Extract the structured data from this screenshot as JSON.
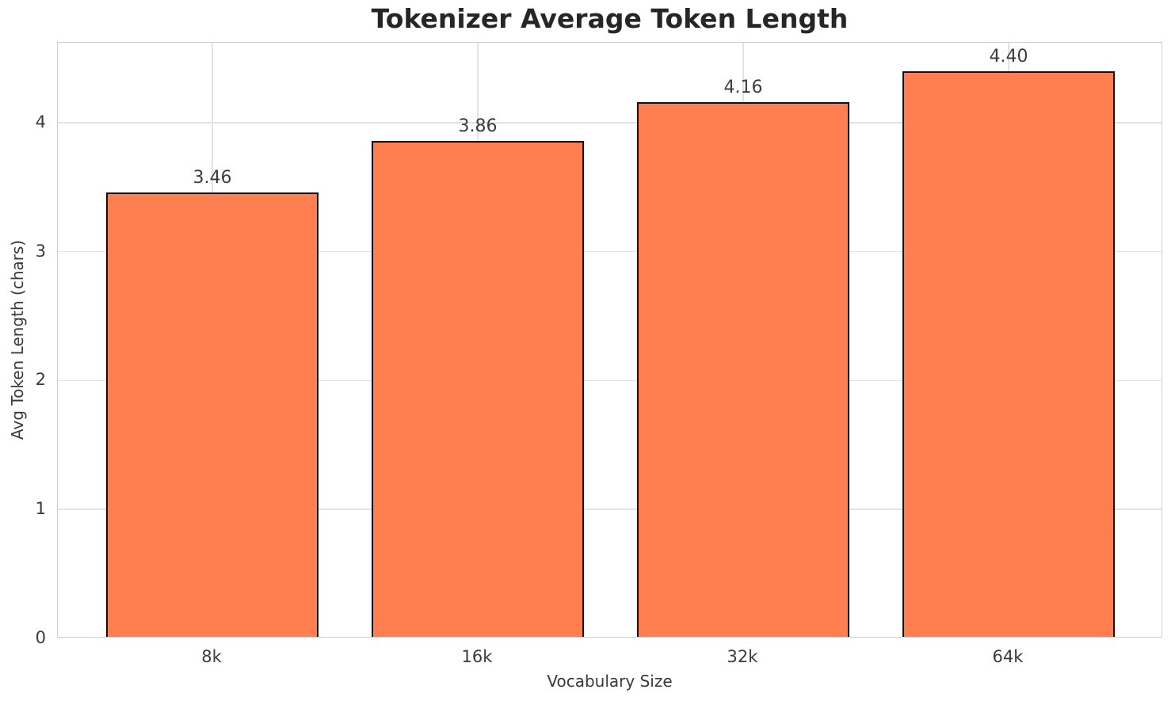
{
  "chart_data": {
    "type": "bar",
    "title": "Tokenizer Average Token Length",
    "xlabel": "Vocabulary Size",
    "ylabel": "Avg Token Length (chars)",
    "categories": [
      "8k",
      "16k",
      "32k",
      "64k"
    ],
    "values": [
      3.46,
      3.86,
      4.16,
      4.4
    ],
    "value_labels": [
      "3.46",
      "3.86",
      "4.16",
      "4.40"
    ],
    "yticks": [
      0,
      1,
      2,
      3,
      4
    ],
    "ylim": [
      0,
      4.62
    ],
    "grid": "both",
    "legend": "none",
    "colors": {
      "bar_fill": "#FF7F50",
      "bar_edge": "#111111",
      "grid": "#e3e3e3",
      "spine": "#cfcfcf",
      "title_text": "#262626",
      "tick_text": "#3a3a3a"
    }
  }
}
